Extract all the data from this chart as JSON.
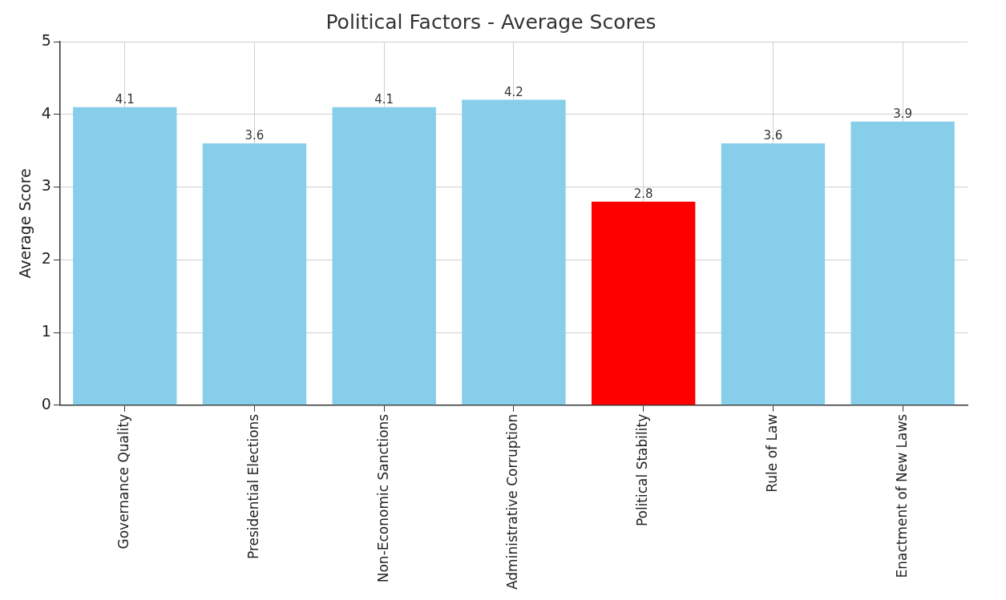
{
  "chart_data": {
    "type": "bar",
    "title": "Political Factors - Average Scores",
    "ylabel": "Average Score",
    "categories": [
      "Governance Quality",
      "Presidential Elections",
      "Non-Economic Sanctions",
      "Administrative Corruption",
      "Political Stability",
      "Rule of Law",
      "Enactment of New Laws"
    ],
    "values": [
      4.1,
      3.6,
      4.1,
      4.2,
      2.8,
      3.6,
      3.9
    ],
    "colors": [
      "#87ceeb",
      "#87ceeb",
      "#87ceeb",
      "#87ceeb",
      "#ff0000",
      "#87ceeb",
      "#87ceeb"
    ],
    "ylim": [
      0,
      5
    ],
    "yticks": [
      0,
      1,
      2,
      3,
      4,
      5
    ],
    "grid": true,
    "data_labels": true
  }
}
